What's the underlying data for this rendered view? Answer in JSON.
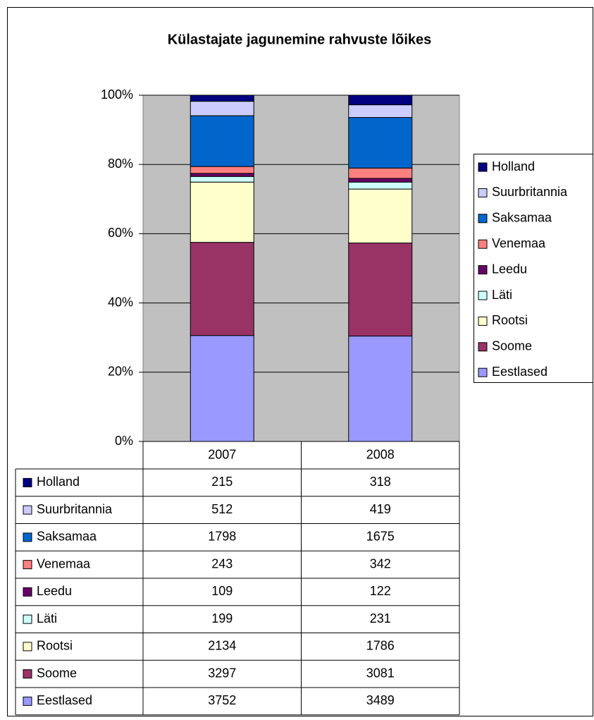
{
  "chart_data": {
    "type": "stacked_bar_percent",
    "title": "Külastajate jagunemine rahvuste lõikes",
    "categories": [
      "2007",
      "2008"
    ],
    "series": [
      {
        "name": "Eestlased",
        "color": "#9999ff",
        "values": [
          3752,
          3489
        ]
      },
      {
        "name": "Soome",
        "color": "#993366",
        "values": [
          3297,
          3081
        ]
      },
      {
        "name": "Rootsi",
        "color": "#ffffcc",
        "values": [
          2134,
          1786
        ]
      },
      {
        "name": "Läti",
        "color": "#ccffff",
        "values": [
          199,
          231
        ]
      },
      {
        "name": "Leedu",
        "color": "#660066",
        "values": [
          109,
          122
        ]
      },
      {
        "name": "Venemaa",
        "color": "#ff8080",
        "values": [
          243,
          342
        ]
      },
      {
        "name": "Saksamaa",
        "color": "#0066cc",
        "values": [
          1798,
          1675
        ]
      },
      {
        "name": "Suurbritannia",
        "color": "#ccccff",
        "values": [
          512,
          419
        ]
      },
      {
        "name": "Holland",
        "color": "#000080",
        "values": [
          215,
          318
        ]
      }
    ],
    "ylim": [
      0,
      100
    ],
    "yticks": [
      {
        "value": 0,
        "label": "0%"
      },
      {
        "value": 20,
        "label": "20%"
      },
      {
        "value": 40,
        "label": "40%"
      },
      {
        "value": 60,
        "label": "60%"
      },
      {
        "value": 80,
        "label": "80%"
      },
      {
        "value": 100,
        "label": "100%"
      }
    ],
    "grid": true,
    "legend": "right",
    "data_table": true
  }
}
